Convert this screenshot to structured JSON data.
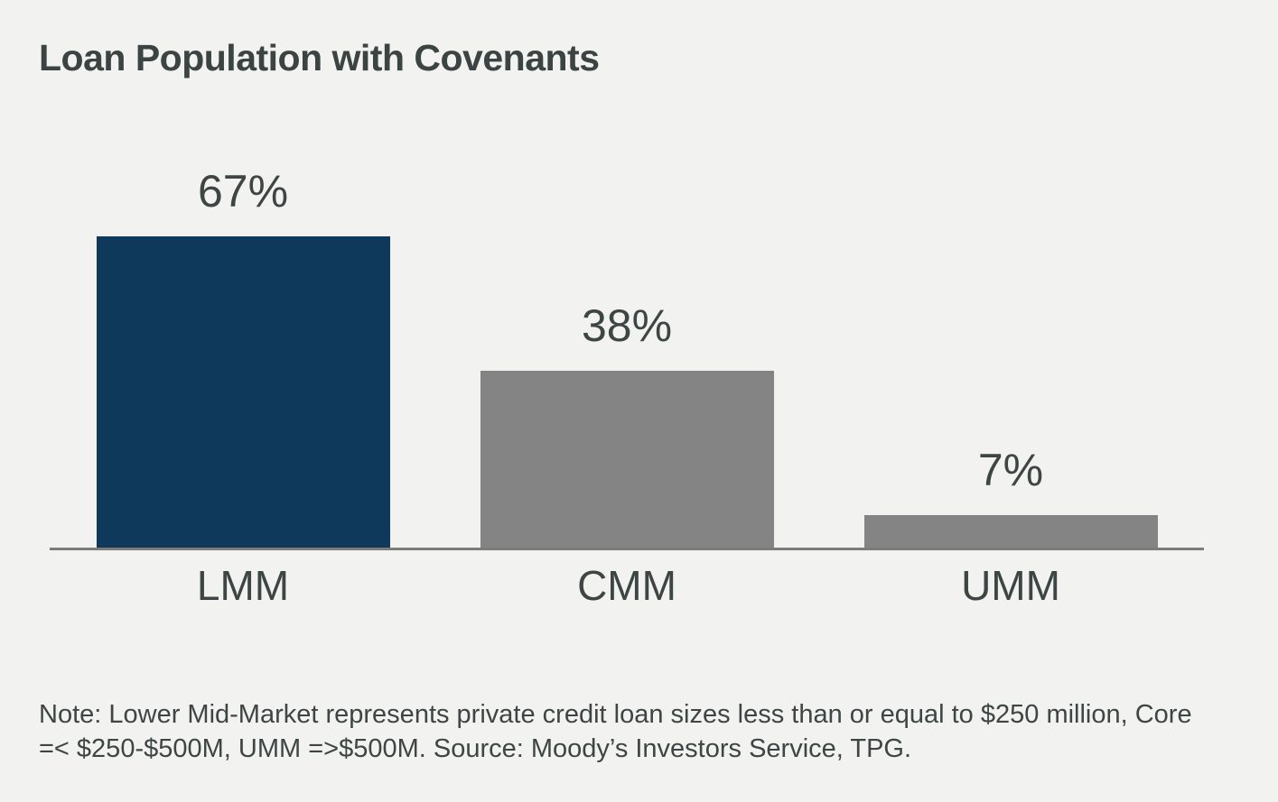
{
  "title": "Loan Population with Covenants",
  "chart_data": {
    "type": "bar",
    "title": "Loan Population with Covenants",
    "categories": [
      "LMM",
      "CMM",
      "UMM"
    ],
    "values": [
      67,
      38,
      7
    ],
    "value_labels": [
      "67%",
      "38%",
      "7%"
    ],
    "xlabel": "",
    "ylabel": "",
    "ylim": [
      0,
      100
    ],
    "grid": false,
    "legend": false,
    "bar_colors": [
      "#0e395a",
      "#848484",
      "#848484"
    ],
    "axis_line_color": "#7c7c7c",
    "text_color": "#3d4644",
    "background_color": "#f2f2f1"
  },
  "note": "Note: Lower Mid-Market represents private credit loan sizes less than or equal to $250 million, Core =< $250-$500M, UMM =>$500M. Source: Moody’s Investors Service, TPG."
}
